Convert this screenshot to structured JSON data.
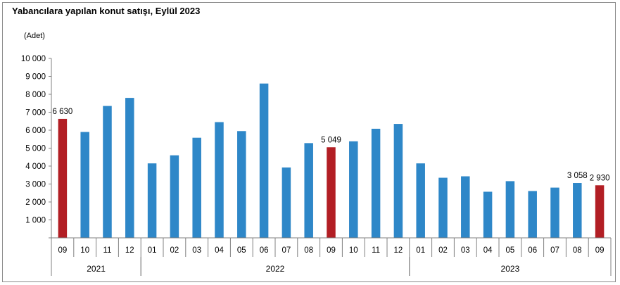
{
  "chart_data": {
    "type": "bar",
    "title": "Yabancılara yapılan konut satışı, Eylül 2023",
    "unit_label": "(Adet)",
    "ylim": [
      0,
      10000
    ],
    "y_ticks": [
      "1 000",
      "2 000",
      "3 000",
      "4 000",
      "5 000",
      "6 000",
      "7 000",
      "8 000",
      "9 000",
      "10 000"
    ],
    "categories": [
      "09",
      "10",
      "11",
      "12",
      "01",
      "02",
      "03",
      "04",
      "05",
      "06",
      "07",
      "08",
      "09",
      "10",
      "11",
      "12",
      "01",
      "02",
      "03",
      "04",
      "05",
      "06",
      "07",
      "08",
      "09"
    ],
    "values": [
      6630,
      5900,
      7350,
      7800,
      4150,
      4600,
      5580,
      6450,
      5950,
      8600,
      3920,
      5280,
      5049,
      5380,
      6080,
      6350,
      4150,
      3350,
      3430,
      2570,
      3160,
      2610,
      2800,
      3058,
      2930
    ],
    "highlight": [
      true,
      false,
      false,
      false,
      false,
      false,
      false,
      false,
      false,
      false,
      false,
      false,
      true,
      false,
      false,
      false,
      false,
      false,
      false,
      false,
      false,
      false,
      false,
      false,
      true
    ],
    "data_labels": [
      {
        "index": 0,
        "text": "6 630"
      },
      {
        "index": 12,
        "text": "5 049"
      },
      {
        "index": 23,
        "text": "3 058"
      },
      {
        "index": 24,
        "text": "2 930"
      }
    ],
    "year_groups": [
      {
        "label": "2021",
        "start": 0,
        "end": 3
      },
      {
        "label": "2022",
        "start": 4,
        "end": 15
      },
      {
        "label": "2023",
        "start": 16,
        "end": 24
      }
    ],
    "colors": {
      "bar": "#2e87c8",
      "highlight": "#b21e24",
      "axis": "#808080"
    },
    "grid": false,
    "legend": "none"
  }
}
